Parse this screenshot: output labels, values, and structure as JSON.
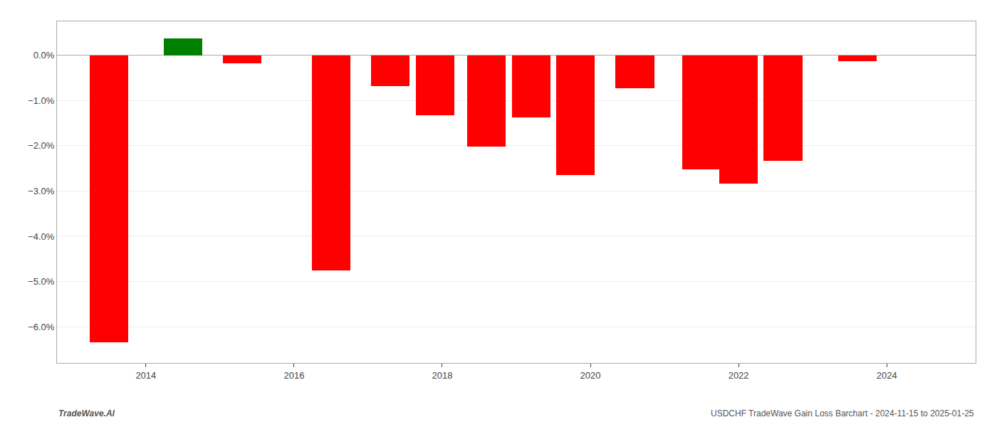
{
  "chart_data": {
    "type": "bar",
    "x": [
      2013.5,
      2014.5,
      2015.3,
      2016.5,
      2017.3,
      2017.9,
      2018.6,
      2019.2,
      2019.8,
      2020.6,
      2021.5,
      2022.0,
      2022.6,
      2023.6
    ],
    "values": [
      -6.35,
      0.38,
      -0.18,
      -4.75,
      -0.68,
      -1.33,
      -2.02,
      -1.38,
      -2.65,
      -0.73,
      -2.52,
      -2.83,
      -2.33,
      -0.13
    ],
    "colors": [
      "#ff0000",
      "#008000",
      "#ff0000",
      "#ff0000",
      "#ff0000",
      "#ff0000",
      "#ff0000",
      "#ff0000",
      "#ff0000",
      "#ff0000",
      "#ff0000",
      "#ff0000",
      "#ff0000",
      "#ff0000"
    ],
    "xlim": [
      2012.8,
      2025.2
    ],
    "xticks": [
      2014,
      2016,
      2018,
      2020,
      2022,
      2024
    ],
    "ylim": [
      -6.8,
      0.75
    ],
    "yticks": [
      {
        "value": 0.0,
        "label": "0.0%"
      },
      {
        "value": -1.0,
        "label": "−1.0%"
      },
      {
        "value": -2.0,
        "label": "−2.0%"
      },
      {
        "value": -3.0,
        "label": "−3.0%"
      },
      {
        "value": -4.0,
        "label": "−4.0%"
      },
      {
        "value": -5.0,
        "label": "−5.0%"
      },
      {
        "value": -6.0,
        "label": "−6.0%"
      }
    ],
    "grid": true,
    "annotations": [
      "TradeWave.AI",
      "USDCHF TradeWave Gain Loss Barchart - 2024-11-15 to 2025-01-25"
    ]
  }
}
